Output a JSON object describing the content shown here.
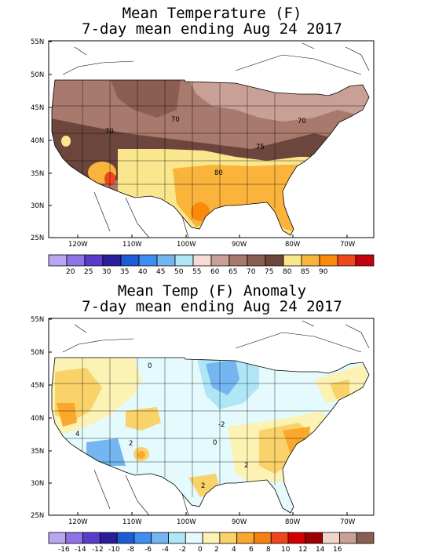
{
  "panels": [
    {
      "title_line1": "Mean Temperature (F)",
      "title_line2": "7-day mean ending Aug 24 2017",
      "lat_labels": [
        "55N",
        "50N",
        "45N",
        "40N",
        "35N",
        "30N",
        "25N"
      ],
      "lon_labels": [
        "120W",
        "110W",
        "100W",
        "90W",
        "80W",
        "70W"
      ],
      "contour_labels": [
        "70",
        "70",
        "75",
        "80",
        "70"
      ],
      "colorbar": {
        "colors": [
          "#b8a6f0",
          "#8f72e6",
          "#5a3ccc",
          "#2a1e9a",
          "#1e5cd6",
          "#3c8ef0",
          "#74b6f2",
          "#aee6f6",
          "#f6dcd4",
          "#c8a096",
          "#a8796d",
          "#8a5e52",
          "#6c463c",
          "#fae68c",
          "#fab43c",
          "#fa8a0a",
          "#f0461e",
          "#c4000e"
        ],
        "labels": [
          "20",
          "25",
          "30",
          "35",
          "40",
          "45",
          "50",
          "55",
          "60",
          "65",
          "70",
          "75",
          "80",
          "85",
          "90"
        ]
      }
    },
    {
      "title_line1": "Mean Temp (F) Anomaly",
      "title_line2": "7-day mean ending Aug 24 2017",
      "lat_labels": [
        "55N",
        "50N",
        "45N",
        "40N",
        "35N",
        "30N",
        "25N"
      ],
      "lon_labels": [
        "120W",
        "110W",
        "100W",
        "90W",
        "80W",
        "70W"
      ],
      "contour_labels": [
        "0",
        "-2",
        "0",
        "2",
        "2",
        "4",
        "2"
      ],
      "colorbar": {
        "colors": [
          "#b8a6f0",
          "#8f72e6",
          "#5a3ccc",
          "#2a1e9a",
          "#1e5cd6",
          "#3c8ef0",
          "#74b6f2",
          "#aee6f6",
          "#e4fafc",
          "#fcf2b4",
          "#fad26a",
          "#faa82c",
          "#f88012",
          "#f0461e",
          "#d40000",
          "#a00000",
          "#f0d4cc",
          "#c8a096",
          "#8a5e52"
        ],
        "labels": [
          "-16",
          "-14",
          "-12",
          "-10",
          "-8",
          "-6",
          "-4",
          "-2",
          "0",
          "2",
          "4",
          "6",
          "8",
          "10",
          "12",
          "14",
          "16"
        ]
      }
    }
  ]
}
